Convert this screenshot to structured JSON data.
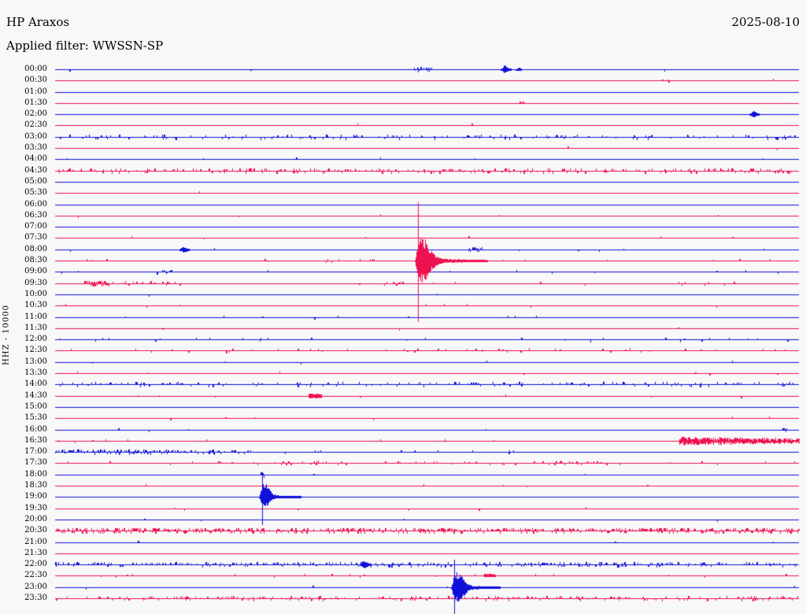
{
  "header": {
    "station": "HP Araxos",
    "date": "2025-08-10",
    "filter": "Applied filter: WWSSN-SP"
  },
  "axis": {
    "ylabel": "HHZ - 10000"
  },
  "colors": {
    "blue_trace": "#0f10d8",
    "red_trace": "#ee1150",
    "background": "#f8f8f8",
    "text": "#000000"
  },
  "chart_data": {
    "type": "line",
    "subtype": "helicorder_seismogram",
    "title": "HP Araxos",
    "date": "2025-08-10",
    "filter": "WWSSN-SP",
    "ylabel": "HHZ - 10000",
    "minutes_per_row": 30,
    "row_color_alternation": [
      "blue",
      "red"
    ],
    "events_summary": [
      {
        "row": "00:00",
        "approx_fraction": 0.6,
        "size": "small"
      },
      {
        "row": "02:00",
        "approx_fraction": 0.94,
        "size": "small"
      },
      {
        "row": "08:00",
        "approx_fraction": 0.17,
        "size": "small"
      },
      {
        "row": "08:30",
        "approx_fraction": 0.49,
        "size": "large"
      },
      {
        "row": "14:30",
        "approx_fraction": 0.35,
        "size": "small"
      },
      {
        "row": "16:30",
        "approx_fraction": 0.84,
        "size": "tremor-burst"
      },
      {
        "row": "19:00",
        "approx_fraction": 0.28,
        "size": "medium"
      },
      {
        "row": "22:00",
        "approx_fraction": 0.41,
        "size": "small"
      },
      {
        "row": "23:00",
        "approx_fraction": 0.54,
        "size": "medium"
      }
    ],
    "rows": [
      {
        "t": "00:00",
        "c": "b",
        "n": [
          0.004,
          1
        ],
        "seg": [
          [
            0.481,
            0.506,
            0.45,
            1.5
          ]
        ],
        "ev": [
          {
            "k": "quake",
            "x": 0.603,
            "a": 5,
            "p": 2,
            "t1": 4,
            "sa": 0,
            "st": 1,
            "vu": 0,
            "vd": 0,
            "dr": 0.8
          },
          {
            "k": "quake",
            "x": 0.623,
            "a": 2,
            "p": 1,
            "t1": 2,
            "sa": 0,
            "st": 1,
            "vu": 0,
            "vd": 0,
            "dr": 0.7
          }
        ]
      },
      {
        "t": "00:30",
        "c": "r",
        "n": [
          0.002,
          1
        ],
        "seg": [
          [
            0.815,
            0.825,
            0.3,
            1.5
          ]
        ]
      },
      {
        "t": "01:00",
        "c": "b"
      },
      {
        "t": "01:30",
        "c": "r",
        "n": [
          0.002,
          1
        ],
        "seg": [
          [
            0.622,
            0.632,
            0.3,
            1.5
          ]
        ]
      },
      {
        "t": "02:00",
        "c": "b",
        "ev": [
          {
            "k": "quake",
            "x": 0.938,
            "a": 4,
            "p": 2,
            "t1": 4,
            "sa": 0,
            "st": 1,
            "vu": 0,
            "vd": 0,
            "dr": 0.8
          }
        ]
      },
      {
        "t": "02:30",
        "c": "r",
        "n": [
          0.002,
          1
        ]
      },
      {
        "t": "03:00",
        "c": "b",
        "n": [
          0.16,
          2
        ]
      },
      {
        "t": "03:30",
        "c": "r",
        "n": [
          0.002,
          1
        ]
      },
      {
        "t": "04:00",
        "c": "b",
        "n": [
          0.002,
          1
        ]
      },
      {
        "t": "04:30",
        "c": "r",
        "n": [
          0.24,
          2
        ]
      },
      {
        "t": "05:00",
        "c": "b"
      },
      {
        "t": "05:30",
        "c": "r",
        "n": [
          0.002,
          1
        ]
      },
      {
        "t": "06:00",
        "c": "b"
      },
      {
        "t": "06:30",
        "c": "r",
        "n": [
          0.004,
          1
        ]
      },
      {
        "t": "07:00",
        "c": "b"
      },
      {
        "t": "07:30",
        "c": "r",
        "n": [
          0.008,
          1.3
        ]
      },
      {
        "t": "08:00",
        "c": "b",
        "n": [
          0.006,
          1
        ],
        "seg": [
          [
            0.556,
            0.576,
            0.5,
            1.5
          ]
        ],
        "ev": [
          {
            "k": "quake",
            "x": 0.171,
            "a": 4,
            "p": 2,
            "t1": 4,
            "sa": 0,
            "st": 1,
            "vu": 0,
            "vd": 0,
            "dr": 0.8
          }
        ]
      },
      {
        "t": "08:30",
        "c": "r",
        "n": [
          0.018,
          1.4
        ],
        "seg": [
          [
            0.37,
            0.43,
            0.12,
            1.5
          ]
        ],
        "ev": [
          {
            "k": "quake",
            "x": 0.488,
            "a": 27,
            "p": 10,
            "t1": 9,
            "sa": 4,
            "st": 45,
            "vu": 74,
            "vd": 78,
            "dr": 1.0
          }
        ]
      },
      {
        "t": "09:00",
        "c": "b",
        "n": [
          0.01,
          1.3
        ],
        "seg": [
          [
            0.132,
            0.158,
            0.3,
            1.6
          ]
        ]
      },
      {
        "t": "09:30",
        "c": "r",
        "n": [
          0.01,
          1.2
        ],
        "seg": [
          [
            0.039,
            0.071,
            0.95,
            2.5
          ],
          [
            0.075,
            0.17,
            0.22,
            1.6
          ],
          [
            0.435,
            0.48,
            0.25,
            1.5
          ],
          [
            0.8,
            0.93,
            0.07,
            1.4
          ]
        ]
      },
      {
        "t": "10:00",
        "c": "b",
        "n": [
          0.003,
          1
        ]
      },
      {
        "t": "10:30",
        "c": "r",
        "n": [
          0.009,
          1.4
        ]
      },
      {
        "t": "11:00",
        "c": "b",
        "n": [
          0.008,
          1.3
        ]
      },
      {
        "t": "11:30",
        "c": "r",
        "n": [
          0.005,
          1
        ]
      },
      {
        "t": "12:00",
        "c": "b",
        "n": [
          0.035,
          1.5
        ]
      },
      {
        "t": "12:30",
        "c": "r",
        "n": [
          0.045,
          1.5
        ]
      },
      {
        "t": "13:00",
        "c": "b",
        "n": [
          0.003,
          1
        ]
      },
      {
        "t": "13:30",
        "c": "r",
        "n": [
          0.007,
          1
        ]
      },
      {
        "t": "14:00",
        "c": "b",
        "n": [
          0.17,
          1.9
        ]
      },
      {
        "t": "14:30",
        "c": "r",
        "n": [
          0.004,
          1
        ],
        "ev": [
          {
            "k": "blob",
            "x": 0.349,
            "w": 16,
            "a": 3
          }
        ]
      },
      {
        "t": "15:00",
        "c": "b"
      },
      {
        "t": "15:30",
        "c": "r",
        "n": [
          0.008,
          1.2
        ]
      },
      {
        "t": "16:00",
        "c": "b",
        "n": [
          0.003,
          1
        ],
        "seg": [
          [
            0.978,
            0.985,
            0.5,
            1.5
          ]
        ]
      },
      {
        "t": "16:30",
        "c": "r",
        "n": [
          0.006,
          1.2
        ],
        "ev": [
          {
            "k": "burst",
            "x0": 0.839,
            "x1": 1.0,
            "a0": 6,
            "a1": 2
          }
        ]
      },
      {
        "t": "17:00",
        "c": "b",
        "n": [
          0.004,
          1
        ],
        "seg": [
          [
            0.0,
            0.155,
            0.6,
            2
          ],
          [
            0.155,
            0.27,
            0.28,
            1.6
          ],
          [
            0.27,
            0.36,
            0.12,
            1.4
          ],
          [
            0.45,
            0.62,
            0.05,
            1.2
          ]
        ]
      },
      {
        "t": "17:30",
        "c": "r",
        "n": [
          0.045,
          1.4
        ],
        "seg": [
          [
            0.3,
            0.4,
            0.15,
            1.6
          ],
          [
            0.56,
            0.76,
            0.14,
            1.6
          ]
        ]
      },
      {
        "t": "18:00",
        "c": "b",
        "n": [
          0.002,
          1
        ],
        "seg": [
          [
            0.276,
            0.281,
            0.7,
            2
          ]
        ]
      },
      {
        "t": "18:30",
        "c": "r",
        "n": [
          0.002,
          1
        ]
      },
      {
        "t": "19:00",
        "c": "b",
        "ev": [
          {
            "k": "quake",
            "x": 0.278,
            "a": 16,
            "p": 6,
            "t1": 6,
            "sa": 3,
            "st": 30,
            "vu": 31,
            "vd": 36,
            "dr": 0.7
          }
        ]
      },
      {
        "t": "19:30",
        "c": "r",
        "n": [
          0.005,
          1
        ]
      },
      {
        "t": "20:00",
        "c": "b",
        "n": [
          0.002,
          1
        ]
      },
      {
        "t": "20:30",
        "c": "r",
        "n": [
          0.5,
          2.2
        ]
      },
      {
        "t": "21:00",
        "c": "b",
        "n": [
          0.002,
          1
        ]
      },
      {
        "t": "21:30",
        "c": "r",
        "n": [
          0.004,
          1
        ]
      },
      {
        "t": "22:00",
        "c": "b",
        "n": [
          0.3,
          1.7
        ],
        "ev": [
          {
            "k": "quake",
            "x": 0.414,
            "a": 5,
            "p": 3,
            "t1": 4,
            "sa": 0,
            "st": 1,
            "vu": 0,
            "vd": 0,
            "dr": 0.8
          }
        ]
      },
      {
        "t": "22:30",
        "c": "r",
        "n": [
          0.012,
          1.2
        ],
        "ev": [
          {
            "k": "blob",
            "x": 0.584,
            "w": 14,
            "a": 2
          }
        ]
      },
      {
        "t": "23:00",
        "c": "b",
        "n": [
          0.004,
          1
        ],
        "ev": [
          {
            "k": "quake",
            "x": 0.5365,
            "a": 18,
            "p": 8,
            "t1": 7,
            "sa": 3,
            "st": 35,
            "vu": 35,
            "vd": 34,
            "dr": 1.1
          }
        ]
      },
      {
        "t": "23:30",
        "c": "r",
        "n": [
          0.2,
          1.6
        ]
      }
    ]
  }
}
